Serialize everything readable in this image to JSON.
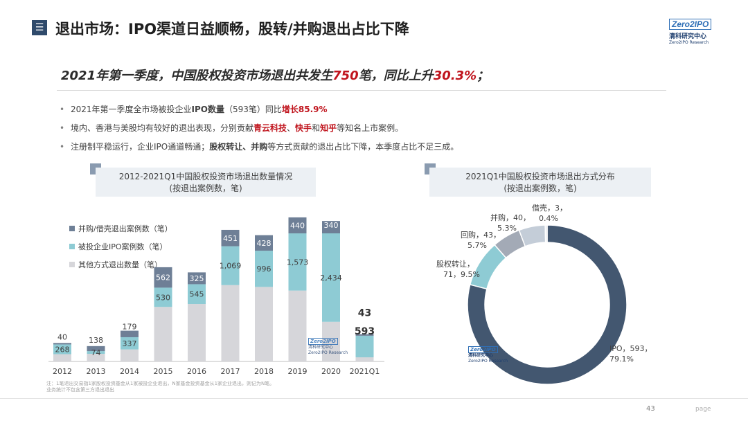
{
  "header": {
    "icon": "menu-icon",
    "title": "退出市场：IPO渠道日益顺畅，股转/并购退出占比下降",
    "logo_mark": "Zero2IPO",
    "logo_cn": "清科研究中心",
    "logo_en": "Zero2IPO Research"
  },
  "headline": {
    "part1": "2021年第一季度，中国股权投资市场退出共发生",
    "num1": "750",
    "part2": "笔，同比上升",
    "num2": "30.3%",
    "part3": "；"
  },
  "bullets": {
    "b1_pre": "2021年第一季度全市场被投企业",
    "b1_ipo": "IPO数量",
    "b1_mid": "（593笔）同比",
    "b1_growth": "增长85.9%",
    "b2_pre": "境内、香港与美股均有较好的退出表现，分别贡献",
    "b2_c1": "青云科技",
    "b2_sep": "、",
    "b2_c2": "快手",
    "b2_and": "和",
    "b2_c3": "知乎",
    "b2_post": "等知名上市案例。",
    "b3_pre": "注册制平稳运行，企业IPO通道畅通；",
    "b3_hl": "股权转让、并购",
    "b3_post": "等方式贡献的退出占比下降，本季度占比不足三成。"
  },
  "colors": {
    "ma": "#6e7f96",
    "ipo": "#8ecbd4",
    "other": "#d6d6da",
    "accent_red": "#c0141d",
    "donut_ipo": "#435770",
    "donut_equity": "#8ecbd4",
    "donut_buyback": "#a3aab6",
    "donut_ma": "#c4cdd8",
    "donut_shell": "#e6e9ee"
  },
  "bar_panel": {
    "title_line1": "2012-2021Q1中国股权投资市场退出数量情况",
    "title_line2": "(按退出案例数，笔)",
    "legend": [
      "并购/借壳退出案例数（笔）",
      "被投企业IPO案例数（笔）",
      "其他方式退出数量（笔）"
    ],
    "note_line1": "注：1笔退出交易指1家股权投资基金从1家被投企业退出，N家基金投资基金从1家企业退出，则记为N笔。",
    "note_line2": "业务统计不包含第三方退出退出"
  },
  "chart_data": [
    {
      "type": "bar",
      "stacked": true,
      "title": "2012-2021Q1中国股权投资市场退出数量情况",
      "subtitle": "(按退出案例数，笔)",
      "categories": [
        "2012",
        "2013",
        "2014",
        "2015",
        "2016",
        "2017",
        "2018",
        "2019",
        "2020",
        "2021Q1"
      ],
      "series": [
        {
          "name": "其他方式退出数量（笔）",
          "values": [
            200,
            210,
            330,
            1500,
            1580,
            2100,
            2050,
            1950,
            1090,
            114
          ]
        },
        {
          "name": "被投企业IPO案例数（笔）",
          "values": [
            268,
            74,
            337,
            530,
            545,
            1069,
            996,
            1573,
            2434,
            593
          ]
        },
        {
          "name": "并购/借壳退出案例数（笔）",
          "values": [
            40,
            138,
            179,
            562,
            325,
            451,
            428,
            440,
            340,
            43
          ]
        }
      ],
      "data_labels": [
        [
          "",
          "",
          "",
          "",
          "",
          "",
          "",
          "",
          "",
          ""
        ],
        [
          "268",
          "74",
          "337",
          "530",
          "545",
          "1,069",
          "996",
          "1,573",
          "2,434",
          "593"
        ],
        [
          "40",
          "138",
          "179",
          "562",
          "325",
          "451",
          "428",
          "440",
          "340",
          "43"
        ]
      ],
      "legend_position": "top-left",
      "grid": false
    },
    {
      "type": "pie",
      "donut": true,
      "title": "2021Q1中国股权投资市场退出方式分布",
      "subtitle": "(按退出案例数，笔)",
      "slices": [
        {
          "label": "IPO",
          "value": 593,
          "percent": "79.1%",
          "label_line1": "IPO，593，",
          "label_line2": "79.1%"
        },
        {
          "label": "股权转让",
          "value": 71,
          "percent": "9.5%",
          "label_line1": "股权转让，",
          "label_line2": "71，9.5%"
        },
        {
          "label": "回购",
          "value": 43,
          "percent": "5.7%",
          "label_line1": "回购，43，",
          "label_line2": "5.7%"
        },
        {
          "label": "并购",
          "value": 40,
          "percent": "5.3%",
          "label_line1": "并购，40，",
          "label_line2": "5.3%"
        },
        {
          "label": "借壳",
          "value": 3,
          "percent": "0.4%",
          "label_line1": "借壳，3，",
          "label_line2": "0.4%"
        }
      ]
    }
  ],
  "footer": {
    "page_number": "43",
    "page_word": "page"
  }
}
